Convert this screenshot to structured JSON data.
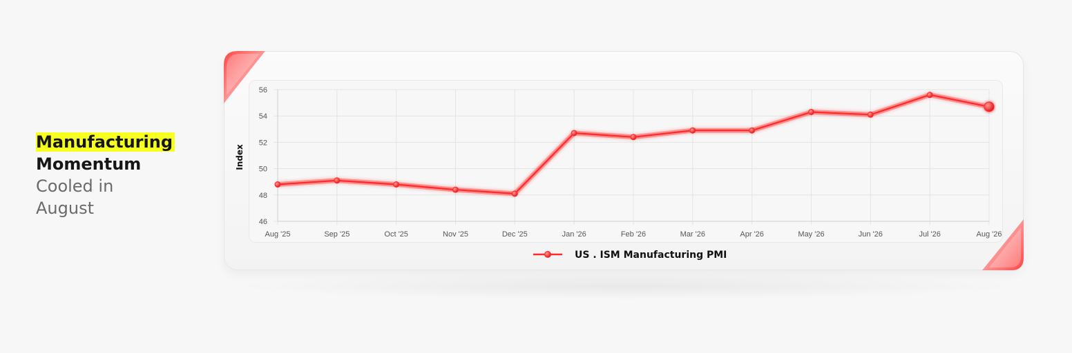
{
  "headline": {
    "line1": "Manufacturing",
    "line2": "Momentum",
    "line3": "Cooled in",
    "line4": "August"
  },
  "colors": {
    "accent": "#ff2a2a",
    "highlight": "#f6ff20",
    "grid": "#e4e4e4"
  },
  "chart_data": {
    "type": "line",
    "ylabel": "Index",
    "xlabel": "",
    "ylim": [
      46,
      56
    ],
    "yticks": [
      46,
      48,
      50,
      52,
      54,
      56
    ],
    "categories": [
      "Aug '25",
      "Sep '25",
      "Oct '25",
      "Nov '25",
      "Dec '25",
      "Jan '26",
      "Feb '26",
      "Mar '26",
      "Apr '26",
      "May '26",
      "Jun '26",
      "Jul '26",
      "Aug '26"
    ],
    "series": [
      {
        "name": "US . ISM Manufacturing PMI",
        "values": [
          48.8,
          49.1,
          48.8,
          48.4,
          48.1,
          52.7,
          52.4,
          52.9,
          52.9,
          54.3,
          54.1,
          55.6,
          54.7
        ]
      }
    ],
    "grid": true,
    "legend_position": "bottom-center"
  }
}
